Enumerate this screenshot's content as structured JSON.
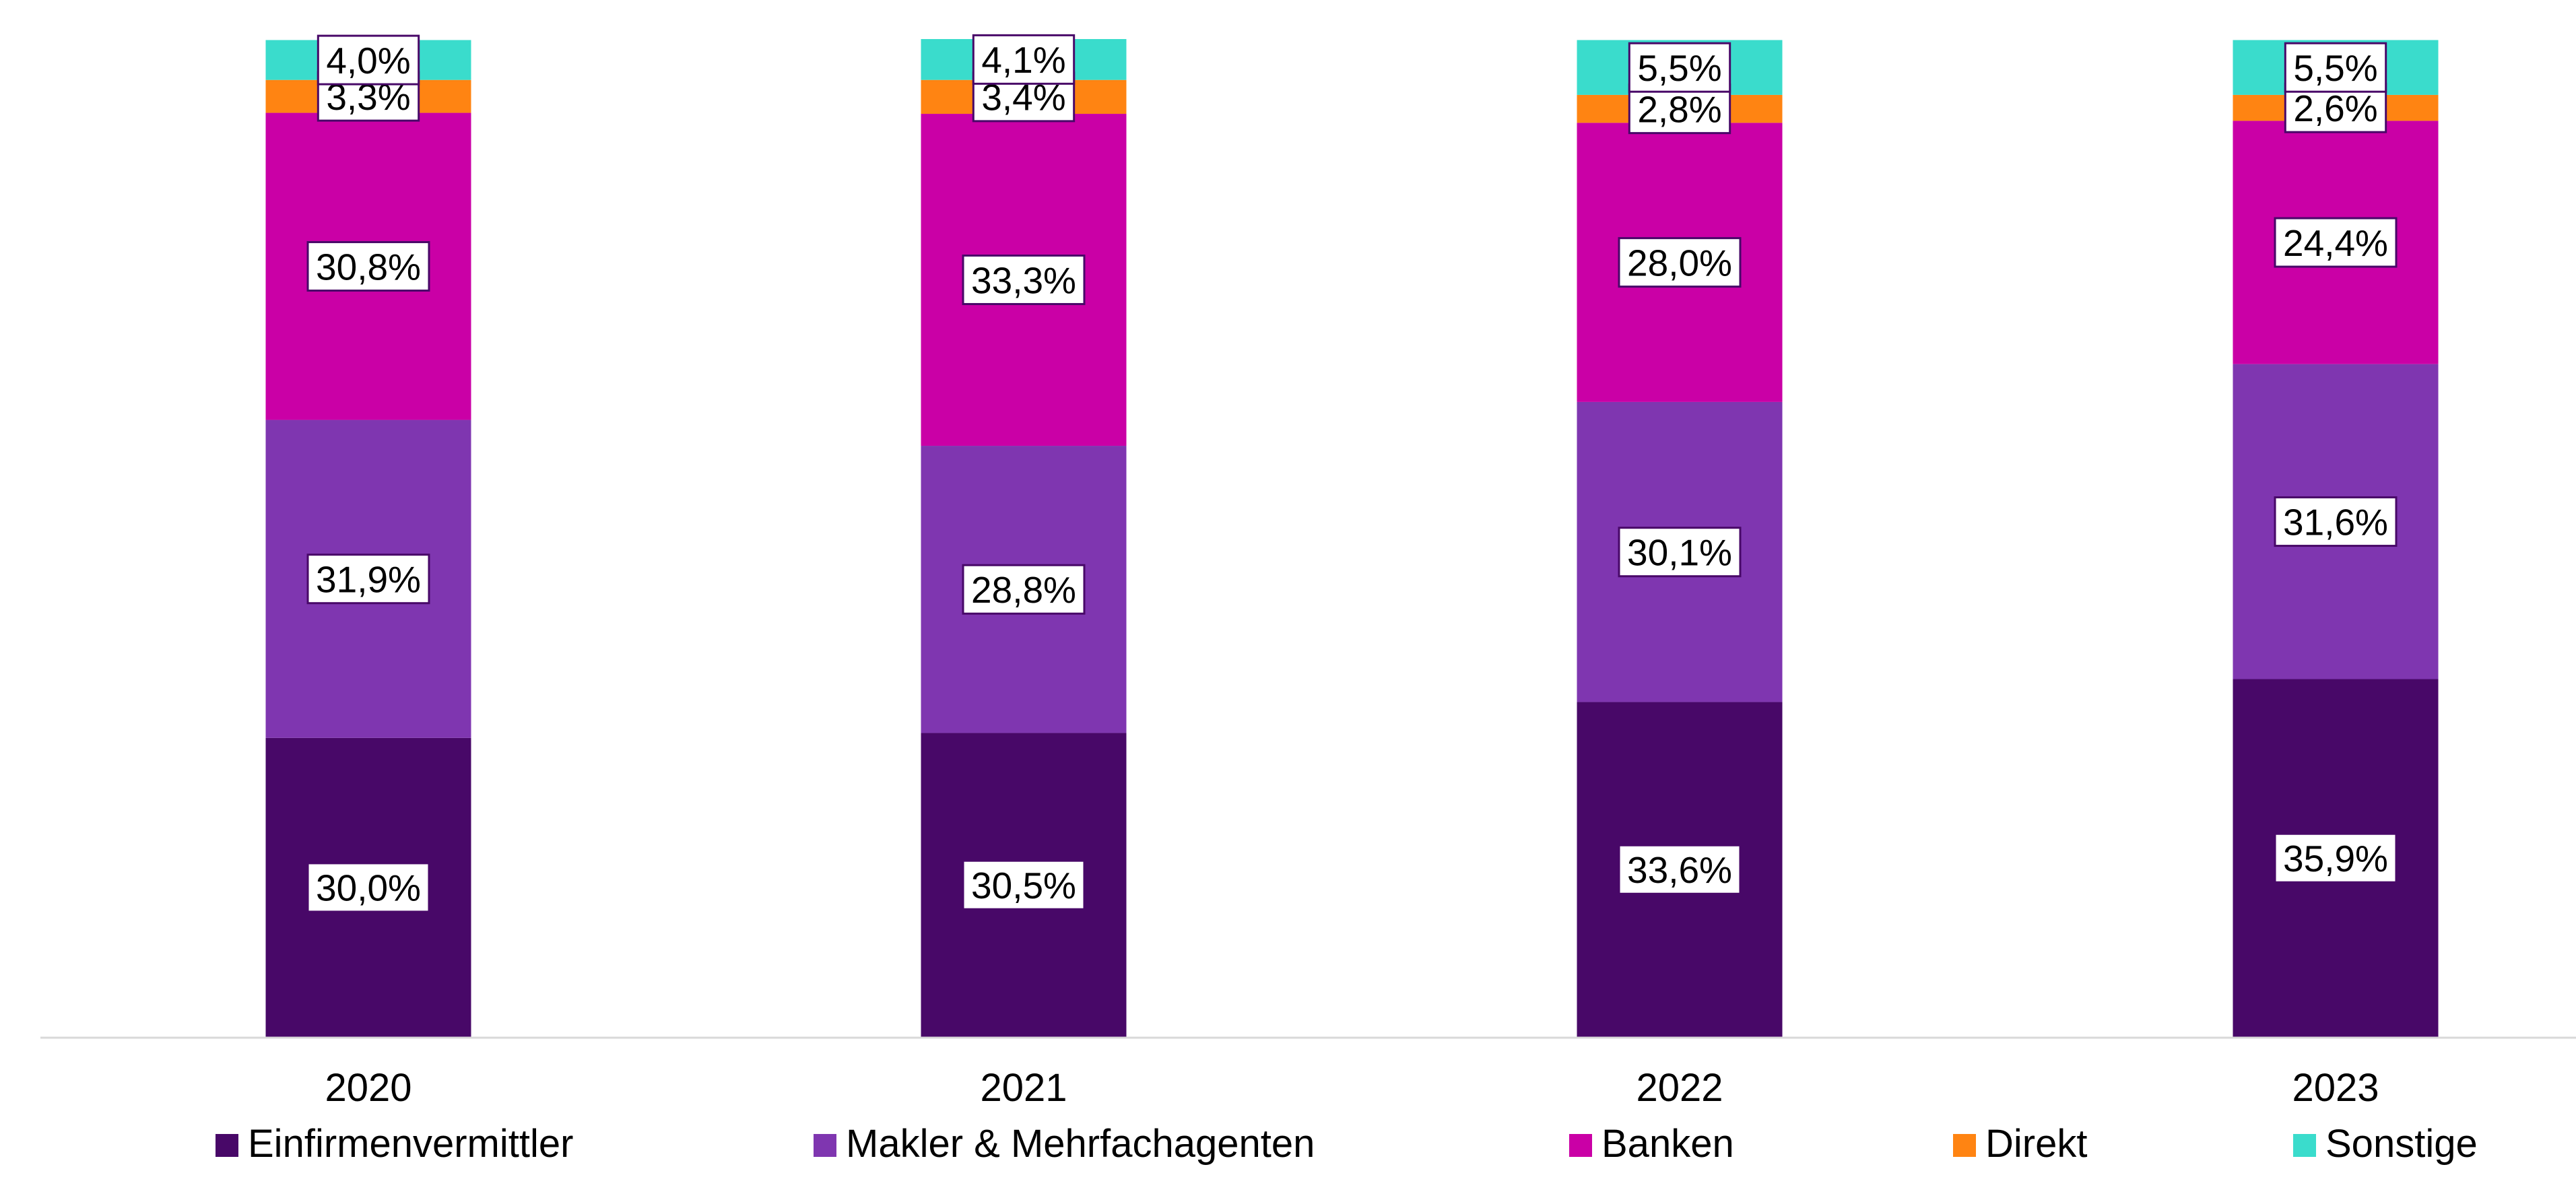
{
  "chart_data": {
    "type": "bar",
    "stacked": true,
    "categories": [
      "2020",
      "2021",
      "2022",
      "2023"
    ],
    "series": [
      {
        "name": "Einfirmenvermittler",
        "color": "#480868",
        "values": [
          30.0,
          30.5,
          33.6,
          35.9
        ],
        "labels": [
          "30,0%",
          "30,5%",
          "33,6%",
          "35,9%"
        ]
      },
      {
        "name": "Makler & Mehrfachagenten",
        "color": "#7F36B0",
        "values": [
          31.9,
          28.8,
          30.1,
          31.6
        ],
        "labels": [
          "31,9%",
          "28,8%",
          "30,1%",
          "31,6%"
        ]
      },
      {
        "name": "Banken",
        "color": "#CA00A6",
        "values": [
          30.8,
          33.3,
          28.0,
          24.4
        ],
        "labels": [
          "30,8%",
          "33,3%",
          "28,0%",
          "24,4%"
        ]
      },
      {
        "name": "Direkt",
        "color": "#FF8412",
        "values": [
          3.3,
          3.4,
          2.8,
          2.6
        ],
        "labels": [
          "3,3%",
          "3,4%",
          "2,8%",
          "2,6%"
        ]
      },
      {
        "name": "Sonstige",
        "color": "#3ADCCC",
        "values": [
          4.0,
          4.1,
          5.5,
          5.5
        ],
        "labels": [
          "4,0%",
          "4,1%",
          "5,5%",
          "5,5%"
        ]
      }
    ],
    "ylim": [
      0,
      100
    ],
    "grid": false,
    "legend_position": "bottom"
  }
}
